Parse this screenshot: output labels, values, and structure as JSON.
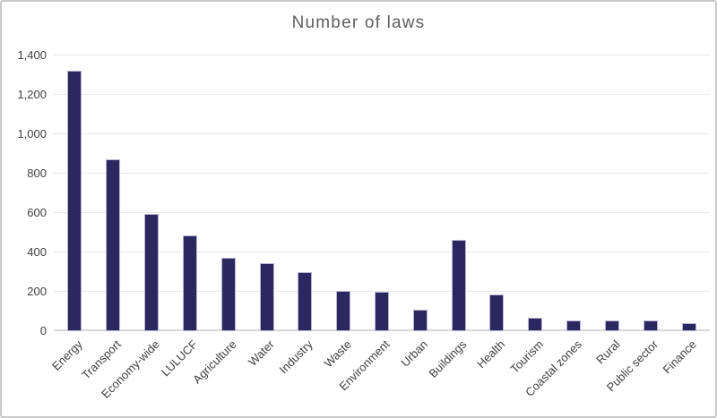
{
  "chart_data": {
    "type": "bar",
    "title": "Number of laws",
    "categories": [
      "Energy",
      "Transport",
      "Economy-wide",
      "LULUCF",
      "Agriculture",
      "Water",
      "Industry",
      "Waste",
      "Environment",
      "Urban",
      "Buildings",
      "Health",
      "Tourism",
      "Coastal zones",
      "Rural",
      "Public sector",
      "Finance"
    ],
    "values": [
      1320,
      870,
      590,
      480,
      370,
      340,
      295,
      200,
      195,
      105,
      460,
      180,
      65,
      50,
      50,
      50,
      35
    ],
    "xlabel": "",
    "ylabel": "",
    "ylim": [
      0,
      1400
    ],
    "ytick_step": 200,
    "ytick_labels": [
      "0",
      "200",
      "400",
      "600",
      "800",
      "1,000",
      "1,200",
      "1,400"
    ],
    "grid": "horizontal",
    "legend": "none",
    "x_label_rotation_deg": -45,
    "colors": {
      "bar_fill": "#2b275f",
      "bar_border": "#bab5d5",
      "gridline": "#e9e9e9",
      "baseline": "#d9d9d9",
      "title_text": "#5f5f5f",
      "tick_text": "#3f3f3f",
      "frame_border": "#c9c9c9",
      "background": "#ffffff"
    }
  }
}
